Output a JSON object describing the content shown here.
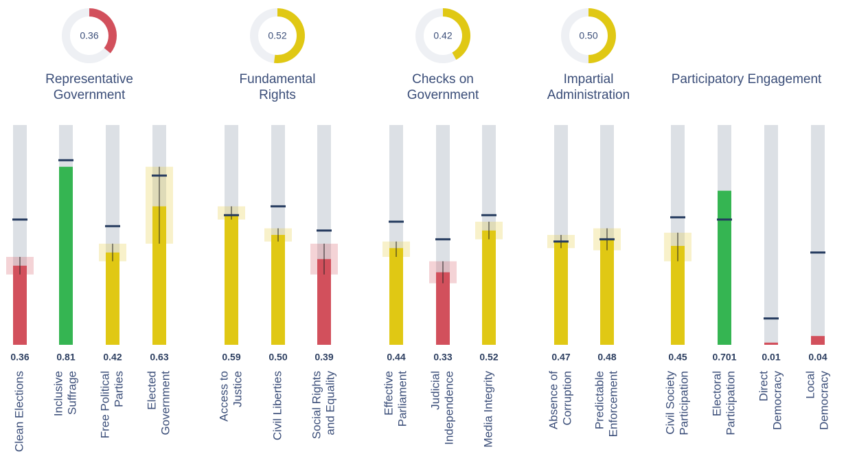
{
  "chart_data": {
    "type": "bullet",
    "ylim": [
      0,
      1
    ],
    "groups": [
      {
        "title": [
          "Representative",
          "Government"
        ],
        "score": 0.36,
        "score_label": "0.36",
        "score_color": "#d2505c",
        "categories": [
          [
            "Clean Elections"
          ],
          [
            "Inclusive",
            "Suffrage"
          ],
          [
            "Free Political",
            "Parties"
          ],
          [
            "Elected",
            "Government"
          ]
        ],
        "values": [
          0.36,
          0.81,
          0.42,
          0.63
        ],
        "value_labels": [
          "0.36",
          "0.81",
          "0.42",
          "0.63"
        ],
        "colors": [
          "#d2505c",
          "#35b552",
          "#e0c814",
          "#e0c814"
        ],
        "benchmarks": [
          0.57,
          0.84,
          0.54,
          0.77
        ],
        "low": [
          0.32,
          null,
          0.38,
          0.46
        ],
        "high": [
          0.4,
          null,
          0.46,
          0.81
        ]
      },
      {
        "title": [
          "Fundamental",
          "Rights"
        ],
        "score": 0.52,
        "score_label": "0.52",
        "score_color": "#e0c814",
        "categories": [
          [
            "Access to",
            "Justice"
          ],
          [
            "Civil Liberties"
          ],
          [
            "Social Rights",
            "and Equality"
          ]
        ],
        "values": [
          0.59,
          0.5,
          0.39
        ],
        "value_labels": [
          "0.59",
          "0.50",
          "0.39"
        ],
        "colors": [
          "#e0c814",
          "#e0c814",
          "#d2505c"
        ],
        "benchmarks": [
          0.59,
          0.63,
          0.52
        ],
        "low": [
          0.57,
          0.47,
          0.32
        ],
        "high": [
          0.63,
          0.53,
          0.46
        ]
      },
      {
        "title": [
          "Checks on",
          "Government"
        ],
        "score": 0.42,
        "score_label": "0.42",
        "score_color": "#e0c814",
        "categories": [
          [
            "Effective",
            "Parliament"
          ],
          [
            "Judicial",
            "Independence"
          ],
          [
            "Media Integrity"
          ]
        ],
        "values": [
          0.44,
          0.33,
          0.52
        ],
        "value_labels": [
          "0.44",
          "0.33",
          "0.52"
        ],
        "colors": [
          "#e0c814",
          "#d2505c",
          "#e0c814"
        ],
        "benchmarks": [
          0.56,
          0.48,
          0.59
        ],
        "low": [
          0.4,
          0.28,
          0.48
        ],
        "high": [
          0.47,
          0.38,
          0.56
        ]
      },
      {
        "title": [
          "Impartial",
          "Administration"
        ],
        "score": 0.5,
        "score_label": "0.50",
        "score_color": "#e0c814",
        "categories": [
          [
            "Absence of",
            "Corruption"
          ],
          [
            "Predictable",
            "Enforcement"
          ]
        ],
        "values": [
          0.47,
          0.48
        ],
        "value_labels": [
          "0.47",
          "0.48"
        ],
        "colors": [
          "#e0c814",
          "#e0c814"
        ],
        "benchmarks": [
          0.47,
          0.48
        ],
        "low": [
          0.44,
          0.43
        ],
        "high": [
          0.5,
          0.53
        ]
      },
      {
        "title": [
          "Participatory Engagement"
        ],
        "categories": [
          [
            "Civil Society",
            "Participation"
          ],
          [
            "Electoral",
            "Participation"
          ],
          [
            "Direct",
            "Democracy"
          ],
          [
            "Local",
            "Democracy"
          ]
        ],
        "values": [
          0.45,
          0.701,
          0.01,
          0.04
        ],
        "value_labels": [
          "0.45",
          "0.701",
          "0.01",
          "0.04"
        ],
        "colors": [
          "#e0c814",
          "#35b552",
          "#d2505c",
          "#d2505c"
        ],
        "benchmarks": [
          0.58,
          0.57,
          0.12,
          0.42
        ],
        "low": [
          0.38,
          null,
          null,
          null
        ],
        "high": [
          0.51,
          null,
          null,
          null
        ]
      }
    ]
  }
}
